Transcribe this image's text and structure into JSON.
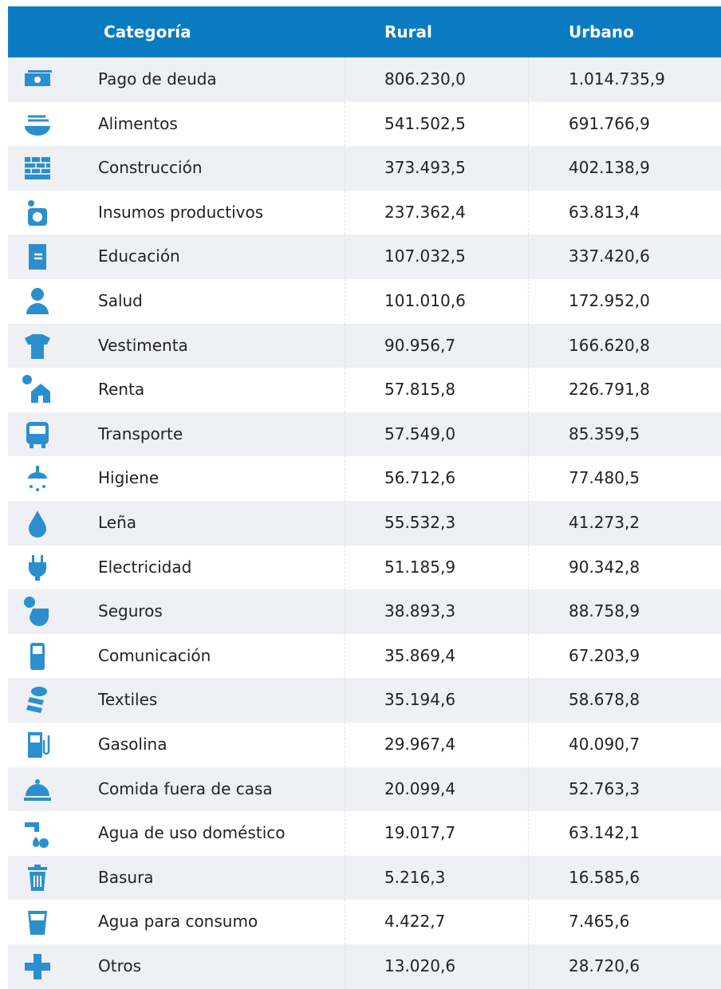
{
  "table": {
    "header": [
      "Categoría",
      "Rural",
      "Urbano"
    ],
    "rows": [
      [
        "Pago de deuda",
        "806.230,0",
        "1.014.735,9"
      ],
      [
        "Alimentos",
        "541.502,5",
        "691.766,9"
      ],
      [
        "Construcción",
        "373.493,5",
        "402.138,9"
      ],
      [
        "Insumos productivos",
        "237.362,4",
        "63.813,4"
      ],
      [
        "Educación",
        "107.032,5",
        "337.420,6"
      ],
      [
        "Salud",
        "101.010,6",
        "172.952,0"
      ],
      [
        "Vestimenta",
        "90.956,7",
        "166.620,8"
      ],
      [
        "Renta",
        "57.815,8",
        "226.791,8"
      ],
      [
        "Transporte",
        "57.549,0",
        "85.359,5"
      ],
      [
        "Higiene",
        "56.712,6",
        "77.480,5"
      ],
      [
        "Leña",
        "55.532,3",
        "41.273,2"
      ],
      [
        "Electricidad",
        "51.185,9",
        "90.342,8"
      ],
      [
        "Seguros",
        "38.893,3",
        "88.758,9"
      ],
      [
        "Comunicación",
        "35.869,4",
        "67.203,9"
      ],
      [
        "Textiles",
        "35.194,6",
        "58.678,8"
      ],
      [
        "Gasolina",
        "29.967,4",
        "40.090,7"
      ],
      [
        "Comida fuera de casa",
        "20.099,4",
        "52.763,3"
      ],
      [
        "Agua de uso doméstico",
        "19.017,7",
        "63.142,1"
      ],
      [
        "Basura",
        "5.216,3",
        "16.585,6"
      ],
      [
        "Agua para consumo",
        "4.422,7",
        "7.465,6"
      ],
      [
        "Otros",
        "13.020,6",
        "28.720,6"
      ]
    ]
  }
}
